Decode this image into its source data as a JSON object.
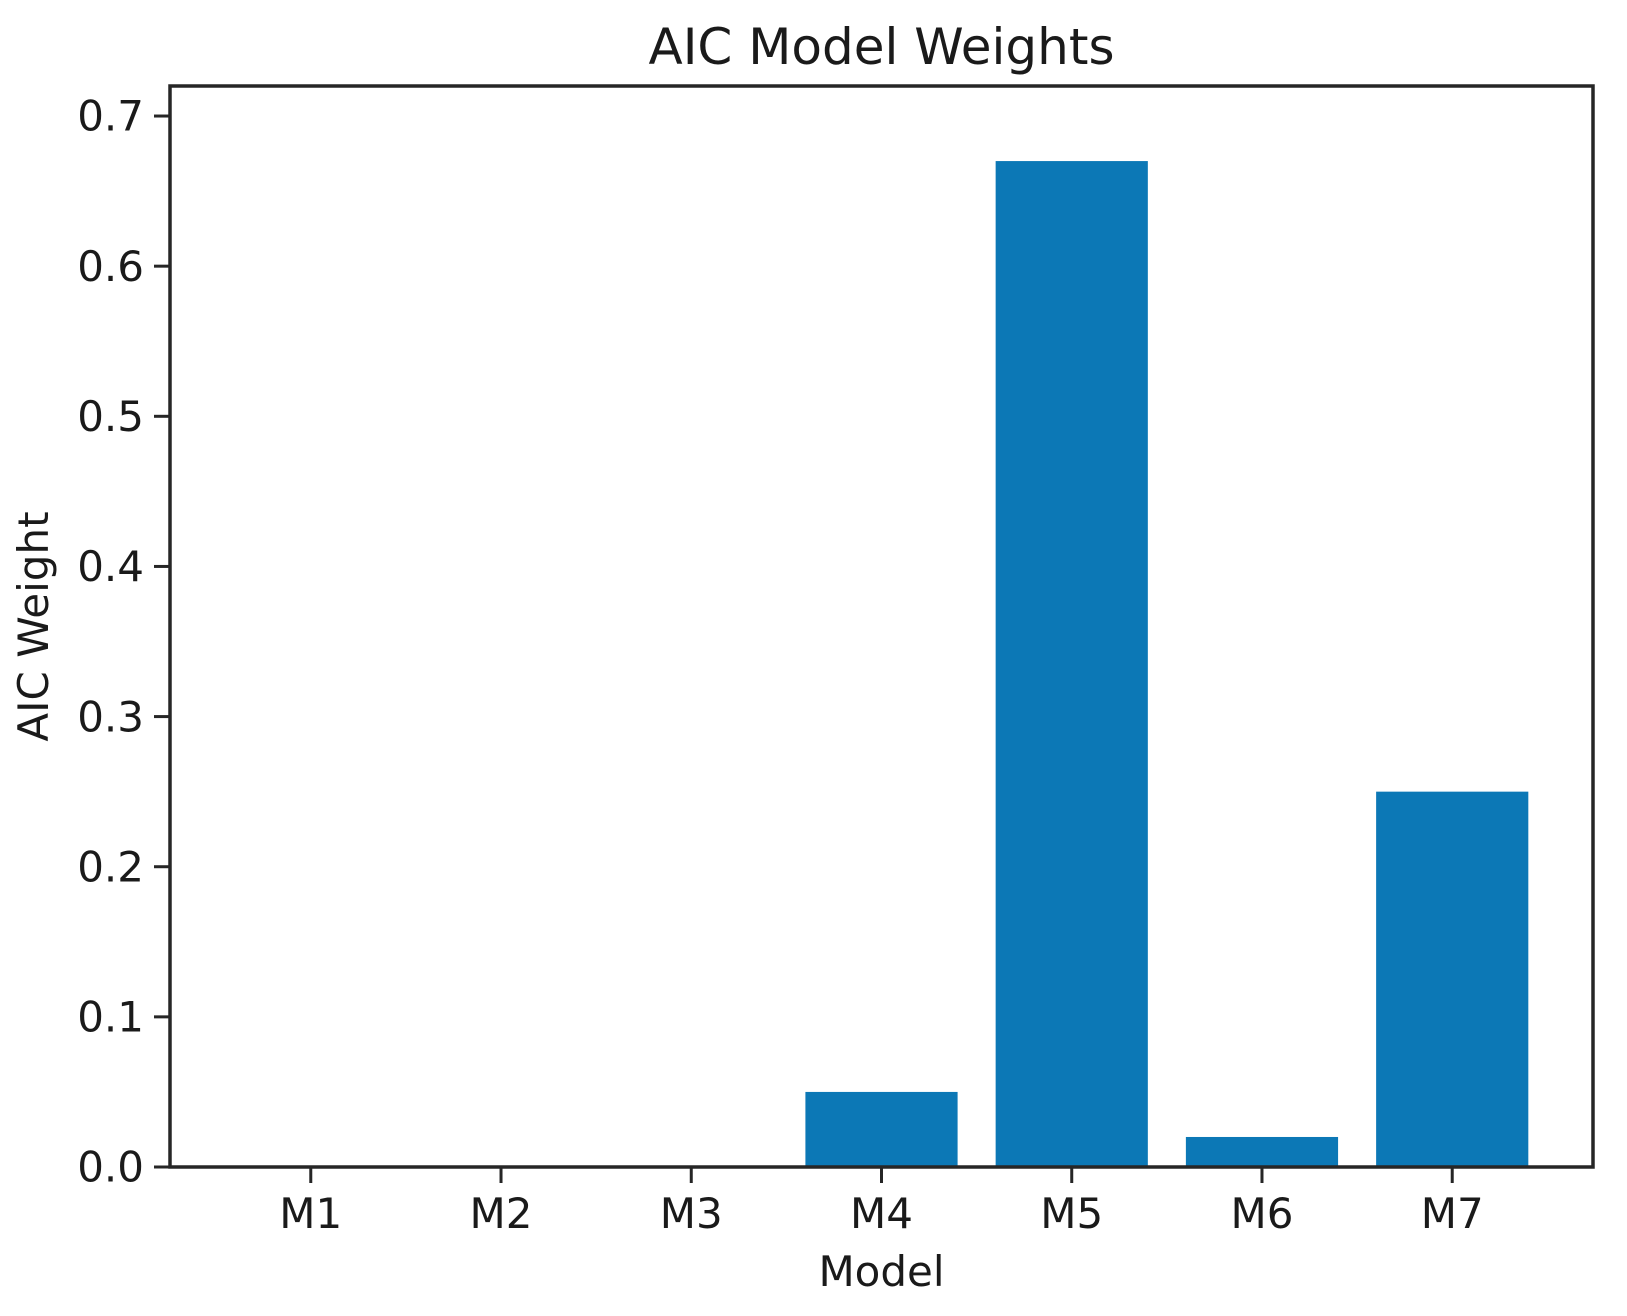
{
  "chart_data": {
    "type": "bar",
    "title": "AIC Model Weights",
    "xlabel": "Model",
    "ylabel": "AIC Weight",
    "categories": [
      "M1",
      "M2",
      "M3",
      "M4",
      "M5",
      "M6",
      "M7"
    ],
    "values": [
      0.0,
      0.0,
      0.0,
      0.05,
      0.67,
      0.02,
      0.25
    ],
    "ylim": [
      0,
      0.72
    ],
    "ytick_values": [
      0.0,
      0.1,
      0.2,
      0.3,
      0.4,
      0.5,
      0.6,
      0.7
    ],
    "ytick_labels": [
      "0.0",
      "0.1",
      "0.2",
      "0.3",
      "0.4",
      "0.5",
      "0.6",
      "0.7"
    ],
    "grid": "off",
    "legend": "none",
    "bar_color": "#0c78b6",
    "axis_color": "#262626",
    "text_color": "#1a1a1a"
  }
}
